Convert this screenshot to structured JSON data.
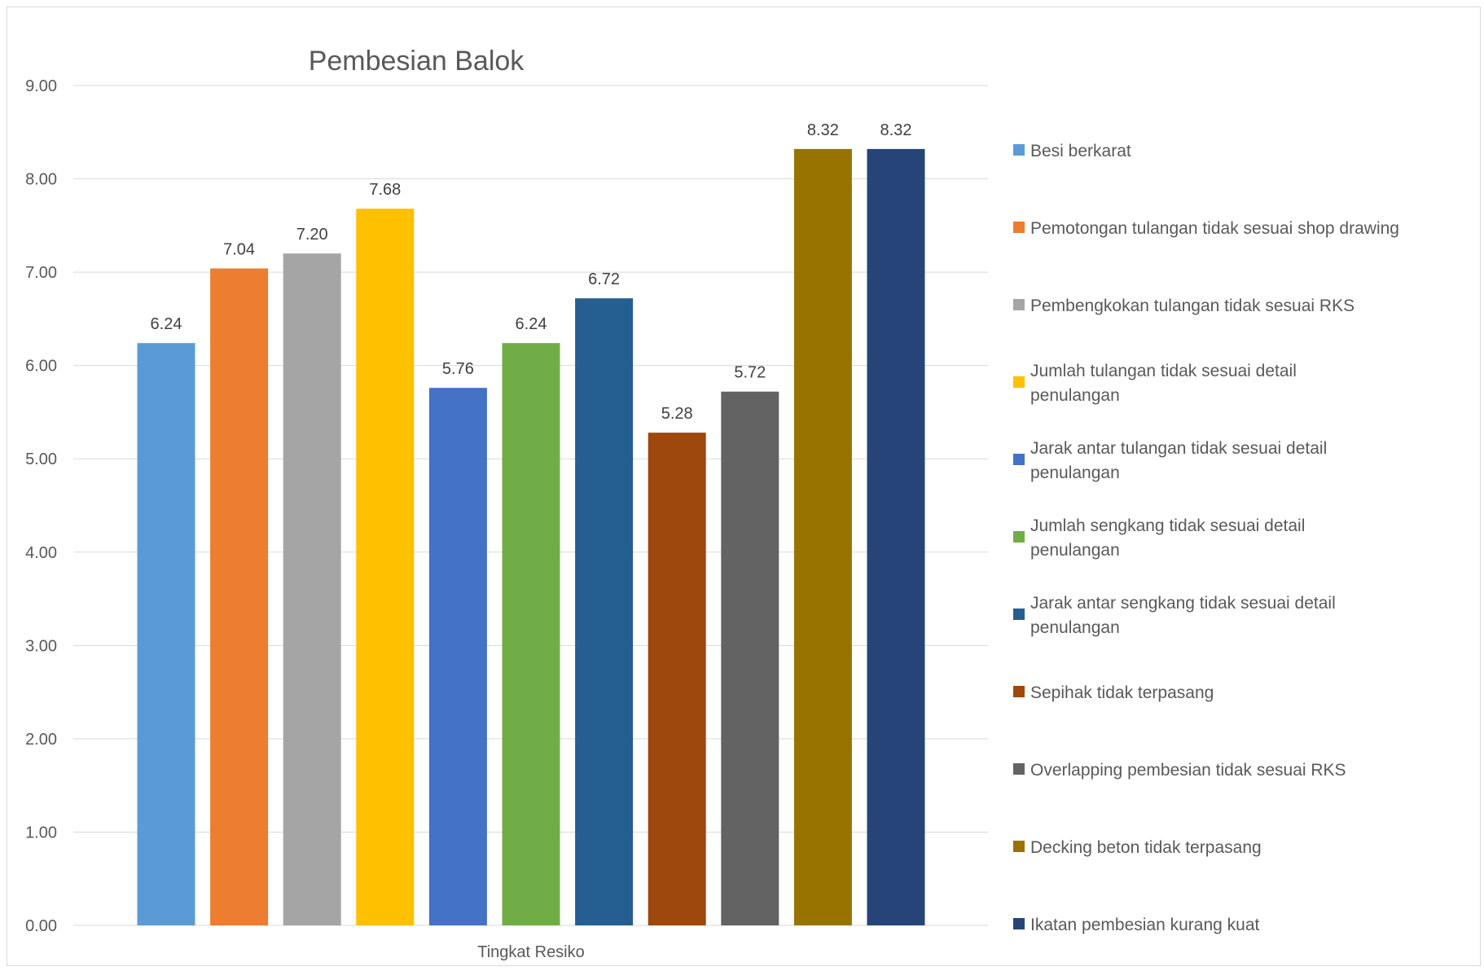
{
  "chart_data": {
    "type": "bar",
    "title": "Pembesian Balok",
    "xlabel": "",
    "ylabel": "",
    "categories": [
      "Tingkat Resiko"
    ],
    "category_label": "Tingkat Resiko",
    "ylim": [
      0,
      9
    ],
    "y_ticks": [
      "0.00",
      "1.00",
      "2.00",
      "3.00",
      "4.00",
      "5.00",
      "6.00",
      "7.00",
      "8.00",
      "9.00"
    ],
    "grid": true,
    "legend_position": "right",
    "series": [
      {
        "name": "Besi berkarat",
        "values": [
          6.24
        ],
        "label": "6.24",
        "color": "#5B9BD5"
      },
      {
        "name": "Pemotongan tulangan tidak sesuai shop drawing",
        "values": [
          7.04
        ],
        "label": "7.04",
        "color": "#ED7D31"
      },
      {
        "name": "Pembengkokan tulangan tidak sesuai RKS",
        "values": [
          7.2
        ],
        "label": "7.20",
        "color": "#A5A5A5"
      },
      {
        "name": "Jumlah tulangan tidak sesuai detail penulangan",
        "values": [
          7.68
        ],
        "label": "7.68",
        "color": "#FFC000"
      },
      {
        "name": "Jarak antar tulangan tidak sesuai detail penulangan",
        "values": [
          5.76
        ],
        "label": "5.76",
        "color": "#4472C4"
      },
      {
        "name": "Jumlah sengkang tidak sesuai detail penulangan",
        "values": [
          6.24
        ],
        "label": "6.24",
        "color": "#70AD47"
      },
      {
        "name": "Jarak antar sengkang tidak sesuai detail penulangan",
        "values": [
          6.72
        ],
        "label": "6.72",
        "color": "#255E91"
      },
      {
        "name": "Sepihak tidak terpasang",
        "values": [
          5.28
        ],
        "label": "5.28",
        "color": "#9E480E"
      },
      {
        "name": "Overlapping pembesian tidak sesuai RKS",
        "values": [
          5.72
        ],
        "label": "5.72",
        "color": "#636363"
      },
      {
        "name": "Decking beton tidak terpasang",
        "values": [
          8.32
        ],
        "label": "8.32",
        "color": "#997300"
      },
      {
        "name": "Ikatan pembesian kurang kuat",
        "values": [
          8.32
        ],
        "label": "8.32",
        "color": "#264478"
      }
    ]
  }
}
